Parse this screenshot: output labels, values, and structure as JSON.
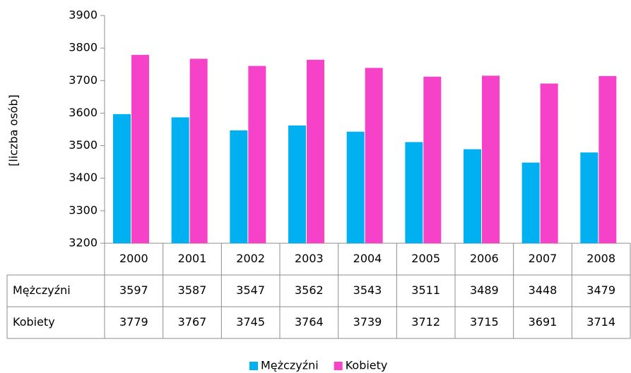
{
  "chart_data": {
    "type": "bar",
    "y_label": "[liczba osób]",
    "categories": [
      "2000",
      "2001",
      "2002",
      "2003",
      "2004",
      "2005",
      "2006",
      "2007",
      "2008"
    ],
    "series": [
      {
        "name": "Mężczyźni",
        "color": "#00b0f0",
        "values": [
          3597,
          3587,
          3547,
          3562,
          3543,
          3511,
          3489,
          3448,
          3479
        ]
      },
      {
        "name": "Kobiety",
        "color": "#f542c8",
        "values": [
          3779,
          3767,
          3745,
          3764,
          3739,
          3712,
          3715,
          3691,
          3714
        ]
      }
    ],
    "ylim": [
      3200,
      3900
    ],
    "yticks": [
      3200,
      3300,
      3400,
      3500,
      3600,
      3700,
      3800,
      3900
    ],
    "grid": false,
    "legend": "bottom"
  }
}
